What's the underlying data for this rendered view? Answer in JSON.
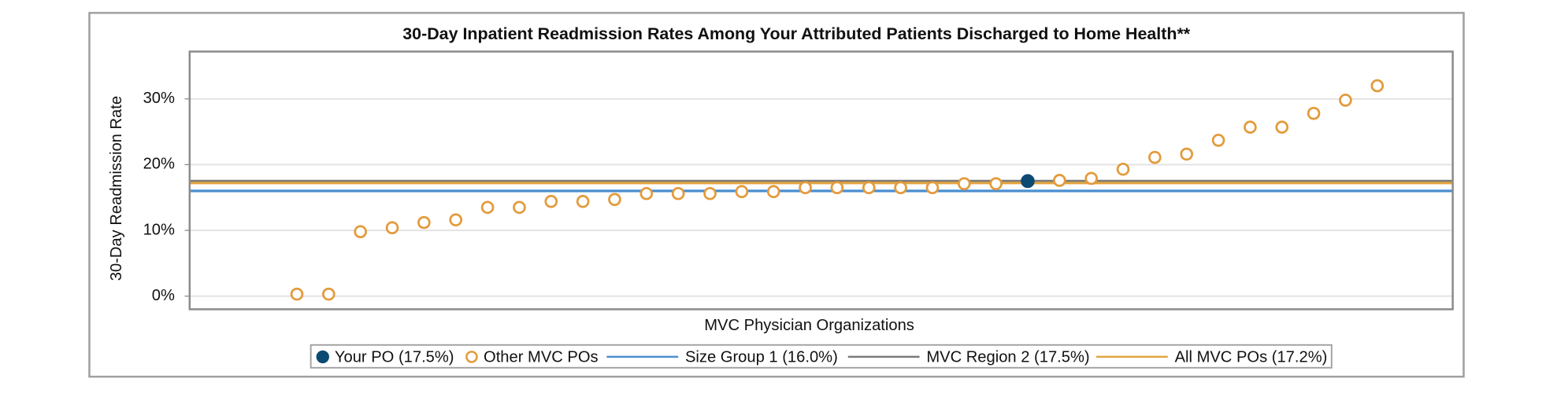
{
  "chart_data": {
    "type": "scatter",
    "title": "30-Day Inpatient Readmission Rates Among Your Attributed Patients Discharged to Home Health**",
    "x_label": "MVC Physician Organizations",
    "y_label": "30-Day Readmission Rate",
    "xlim": [
      -2.375,
      37.375
    ],
    "ylim": [
      -2,
      37.2
    ],
    "yticks": [
      {
        "value": 0,
        "label": "0%"
      },
      {
        "value": 10,
        "label": "10%"
      },
      {
        "value": 20,
        "label": "20%"
      },
      {
        "value": 30,
        "label": "30%"
      }
    ],
    "grid": true,
    "series": [
      {
        "name": "Your PO (17.5%)",
        "color": "#0d4a73",
        "marker": "filled",
        "x": [
          24
        ],
        "values": [
          17.5
        ]
      },
      {
        "name": "Other MVC POs",
        "color": "#e39b3c",
        "marker": "open",
        "x": [
          1,
          2,
          3,
          4,
          5,
          6,
          7,
          8,
          9,
          10,
          11,
          12,
          13,
          14,
          15,
          16,
          17,
          18,
          19,
          20,
          21,
          22,
          23,
          25,
          26,
          27,
          28,
          29,
          30,
          31,
          32,
          33,
          34,
          35
        ],
        "values": [
          0.3,
          0.3,
          9.8,
          10.4,
          11.2,
          11.6,
          13.5,
          13.5,
          14.4,
          14.4,
          14.7,
          15.6,
          15.6,
          15.6,
          15.9,
          15.9,
          16.5,
          16.5,
          16.5,
          16.5,
          16.5,
          17.1,
          17.1,
          17.6,
          17.9,
          19.3,
          21.1,
          21.6,
          23.7,
          25.7,
          25.7,
          27.8,
          29.8,
          32.0
        ]
      }
    ],
    "reference_lines": [
      {
        "name": "Size Group 1 (16.0%)",
        "value": 16.0,
        "color": "#4a8fd1"
      },
      {
        "name": "MVC Region 2 (17.5%)",
        "value": 17.5,
        "color": "#7a7a7a"
      },
      {
        "name": "All MVC POs (17.2%)",
        "value": 17.2,
        "color": "#e3a440"
      }
    ]
  }
}
